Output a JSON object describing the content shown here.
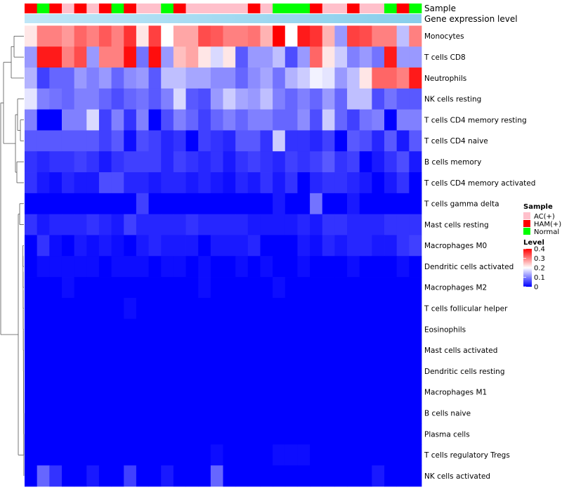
{
  "chart_data": {
    "type": "heatmap",
    "annotations": {
      "sample_label": "Sample",
      "expression_label": "Gene expression level"
    },
    "columns": {
      "count": 32,
      "sample_group": [
        "HAM(+)",
        "Normal",
        "HAM(+)",
        "AC(+)",
        "HAM(+)",
        "AC(+)",
        "HAM(+)",
        "Normal",
        "HAM(+)",
        "AC(+)",
        "AC(+)",
        "Normal",
        "HAM(+)",
        "AC(+)",
        "AC(+)",
        "AC(+)",
        "AC(+)",
        "AC(+)",
        "HAM(+)",
        "AC(+)",
        "Normal",
        "Normal",
        "Normal",
        "HAM(+)",
        "AC(+)",
        "AC(+)",
        "HAM(+)",
        "AC(+)",
        "AC(+)",
        "Normal",
        "HAM(+)",
        "Normal"
      ]
    },
    "rows": [
      "Monocytes",
      "T cells CD8",
      "Neutrophils",
      "NK cells resting",
      "T cells CD4 memory resting",
      "T cells CD4 naive",
      "B cells memory",
      "T cells CD4 memory activated",
      "T cells gamma delta",
      "Mast cells resting",
      "Macrophages M0",
      "Dendritic cells activated",
      "Macrophages M2",
      "T cells follicular helper",
      "Eosinophils",
      "Mast cells activated",
      "Dendritic cells resting",
      "Macrophages M1",
      "B cells naive",
      "Plasma cells",
      "T cells regulatory  Tregs",
      "NK cells activated"
    ],
    "values": [
      [
        0.22,
        0.3,
        0.3,
        0.28,
        0.32,
        0.3,
        0.33,
        0.3,
        0.36,
        0.22,
        0.35,
        0.2,
        0.27,
        0.27,
        0.34,
        0.33,
        0.3,
        0.3,
        0.31,
        0.26,
        0.4,
        0.2,
        0.38,
        0.36,
        0.26,
        0.12,
        0.35,
        0.34,
        0.3,
        0.3,
        0.15,
        0.3
      ],
      [
        0.12,
        0.38,
        0.38,
        0.3,
        0.34,
        0.12,
        0.3,
        0.3,
        0.39,
        0.09,
        0.39,
        0.12,
        0.25,
        0.27,
        0.22,
        0.17,
        0.22,
        0.07,
        0.12,
        0.12,
        0.15,
        0.06,
        0.12,
        0.32,
        0.22,
        0.16,
        0.1,
        0.12,
        0.09,
        0.38,
        0.12,
        0.12
      ],
      [
        0.14,
        0.05,
        0.08,
        0.08,
        0.12,
        0.1,
        0.12,
        0.08,
        0.11,
        0.12,
        0.07,
        0.15,
        0.15,
        0.13,
        0.13,
        0.11,
        0.11,
        0.08,
        0.11,
        0.13,
        0.09,
        0.14,
        0.16,
        0.19,
        0.18,
        0.12,
        0.15,
        0.22,
        0.32,
        0.32,
        0.3,
        0.38
      ],
      [
        0.18,
        0.1,
        0.09,
        0.08,
        0.1,
        0.1,
        0.08,
        0.06,
        0.08,
        0.09,
        0.07,
        0.1,
        0.17,
        0.07,
        0.06,
        0.12,
        0.16,
        0.13,
        0.12,
        0.15,
        0.1,
        0.08,
        0.1,
        0.08,
        0.12,
        0.08,
        0.15,
        0.15,
        0.06,
        0.09,
        0.07,
        0.07
      ],
      [
        0.1,
        0.0,
        0.0,
        0.1,
        0.1,
        0.17,
        0.05,
        0.1,
        0.04,
        0.1,
        0.0,
        0.06,
        0.1,
        0.08,
        0.05,
        0.08,
        0.1,
        0.08,
        0.1,
        0.1,
        0.08,
        0.08,
        0.11,
        0.06,
        0.16,
        0.08,
        0.05,
        0.09,
        0.1,
        0.0,
        0.1,
        0.1
      ],
      [
        0.07,
        0.07,
        0.07,
        0.07,
        0.07,
        0.07,
        0.05,
        0.07,
        0.01,
        0.06,
        0.05,
        0.03,
        0.04,
        0.0,
        0.05,
        0.04,
        0.03,
        0.07,
        0.07,
        0.04,
        0.16,
        0.04,
        0.04,
        0.03,
        0.05,
        0.0,
        0.07,
        0.06,
        0.03,
        0.07,
        0.02,
        0.07
      ],
      [
        0.04,
        0.03,
        0.04,
        0.04,
        0.05,
        0.04,
        0.02,
        0.04,
        0.05,
        0.05,
        0.05,
        0.03,
        0.05,
        0.04,
        0.03,
        0.04,
        0.02,
        0.04,
        0.05,
        0.04,
        0.03,
        0.05,
        0.04,
        0.05,
        0.07,
        0.04,
        0.05,
        0.0,
        0.02,
        0.04,
        0.06,
        0.02
      ],
      [
        0.04,
        0.02,
        0.01,
        0.03,
        0.02,
        0.02,
        0.06,
        0.06,
        0.03,
        0.03,
        0.02,
        0.03,
        0.03,
        0.02,
        0.03,
        0.02,
        0.01,
        0.03,
        0.02,
        0.04,
        0.02,
        0.04,
        0.0,
        0.03,
        0.04,
        0.04,
        0.03,
        0.02,
        0.0,
        0.02,
        0.04,
        0.0
      ],
      [
        0.0,
        0.0,
        0.0,
        0.0,
        0.0,
        0.0,
        0.0,
        0.0,
        0.0,
        0.05,
        0.0,
        0.0,
        0.0,
        0.0,
        0.0,
        0.0,
        0.0,
        0.0,
        0.0,
        0.0,
        0.02,
        0.0,
        0.0,
        0.09,
        0.0,
        0.0,
        0.02,
        0.0,
        0.0,
        0.0,
        0.0,
        0.0
      ],
      [
        0.04,
        0.02,
        0.03,
        0.03,
        0.03,
        0.04,
        0.03,
        0.02,
        0.05,
        0.03,
        0.03,
        0.03,
        0.03,
        0.04,
        0.03,
        0.03,
        0.03,
        0.03,
        0.02,
        0.02,
        0.02,
        0.02,
        0.03,
        0.02,
        0.04,
        0.04,
        0.03,
        0.03,
        0.03,
        0.04,
        0.04,
        0.04
      ],
      [
        0.0,
        0.04,
        0.01,
        0.0,
        0.02,
        0.01,
        0.02,
        0.01,
        0.0,
        0.02,
        0.03,
        0.02,
        0.02,
        0.02,
        0.0,
        0.02,
        0.02,
        0.02,
        0.03,
        0.0,
        0.0,
        0.0,
        0.02,
        0.01,
        0.03,
        0.02,
        0.03,
        0.03,
        0.02,
        0.02,
        0.04,
        0.05
      ],
      [
        0.0,
        0.01,
        0.01,
        0.01,
        0.01,
        0.01,
        0.0,
        0.01,
        0.01,
        0.01,
        0.0,
        0.01,
        0.01,
        0.0,
        0.01,
        0.0,
        0.0,
        0.01,
        0.0,
        0.01,
        0.0,
        0.0,
        0.01,
        0.0,
        0.0,
        0.0,
        0.01,
        0.0,
        0.0,
        0.0,
        0.01,
        0.0
      ],
      [
        0.0,
        0.0,
        0.0,
        0.01,
        0.0,
        0.0,
        0.0,
        0.0,
        0.0,
        0.0,
        0.0,
        0.0,
        0.0,
        0.0,
        0.01,
        0.0,
        0.0,
        0.0,
        0.0,
        0.0,
        0.01,
        0.0,
        0.0,
        0.0,
        0.0,
        0.0,
        0.0,
        0.0,
        0.0,
        0.0,
        0.0,
        0.0
      ],
      [
        0.0,
        0.0,
        0.0,
        0.0,
        0.0,
        0.0,
        0.0,
        0.0,
        0.01,
        0.0,
        0.0,
        0.0,
        0.0,
        0.0,
        0.0,
        0.0,
        0.0,
        0.0,
        0.0,
        0.0,
        0.0,
        0.0,
        0.0,
        0.0,
        0.0,
        0.0,
        0.0,
        0.0,
        0.0,
        0.0,
        0.0,
        0.0
      ],
      [
        0.0,
        0.0,
        0.0,
        0.0,
        0.0,
        0.0,
        0.0,
        0.0,
        0.0,
        0.0,
        0.0,
        0.0,
        0.0,
        0.0,
        0.0,
        0.0,
        0.0,
        0.0,
        0.0,
        0.0,
        0.0,
        0.0,
        0.0,
        0.0,
        0.0,
        0.0,
        0.0,
        0.0,
        0.0,
        0.0,
        0.0,
        0.0
      ],
      [
        0.0,
        0.0,
        0.0,
        0.0,
        0.0,
        0.0,
        0.0,
        0.0,
        0.0,
        0.0,
        0.0,
        0.0,
        0.0,
        0.0,
        0.0,
        0.0,
        0.0,
        0.0,
        0.0,
        0.0,
        0.0,
        0.0,
        0.0,
        0.0,
        0.0,
        0.0,
        0.0,
        0.0,
        0.0,
        0.0,
        0.0,
        0.0
      ],
      [
        0.0,
        0.0,
        0.0,
        0.0,
        0.0,
        0.0,
        0.0,
        0.0,
        0.0,
        0.0,
        0.0,
        0.0,
        0.0,
        0.0,
        0.0,
        0.0,
        0.0,
        0.0,
        0.0,
        0.0,
        0.0,
        0.0,
        0.0,
        0.0,
        0.0,
        0.0,
        0.0,
        0.0,
        0.0,
        0.0,
        0.0,
        0.0
      ],
      [
        0.0,
        0.0,
        0.0,
        0.0,
        0.0,
        0.0,
        0.0,
        0.0,
        0.0,
        0.0,
        0.0,
        0.0,
        0.0,
        0.0,
        0.0,
        0.0,
        0.0,
        0.0,
        0.0,
        0.0,
        0.0,
        0.0,
        0.0,
        0.0,
        0.0,
        0.0,
        0.0,
        0.0,
        0.0,
        0.0,
        0.0,
        0.0
      ],
      [
        0.0,
        0.0,
        0.0,
        0.0,
        0.0,
        0.0,
        0.0,
        0.0,
        0.0,
        0.0,
        0.0,
        0.0,
        0.0,
        0.0,
        0.0,
        0.0,
        0.0,
        0.0,
        0.0,
        0.0,
        0.0,
        0.0,
        0.0,
        0.0,
        0.0,
        0.0,
        0.0,
        0.0,
        0.0,
        0.0,
        0.0,
        0.0
      ],
      [
        0.0,
        0.0,
        0.0,
        0.0,
        0.0,
        0.0,
        0.0,
        0.0,
        0.0,
        0.0,
        0.0,
        0.0,
        0.0,
        0.0,
        0.0,
        0.0,
        0.0,
        0.0,
        0.0,
        0.0,
        0.0,
        0.0,
        0.0,
        0.0,
        0.0,
        0.0,
        0.0,
        0.0,
        0.0,
        0.0,
        0.0,
        0.0
      ],
      [
        0.0,
        0.0,
        0.0,
        0.0,
        0.0,
        0.0,
        0.0,
        0.0,
        0.0,
        0.0,
        0.0,
        0.0,
        0.0,
        0.0,
        0.0,
        0.01,
        0.0,
        0.0,
        0.0,
        0.0,
        0.01,
        0.01,
        0.01,
        0.0,
        0.0,
        0.0,
        0.0,
        0.0,
        0.0,
        0.0,
        0.0,
        0.0
      ],
      [
        0.0,
        0.08,
        0.04,
        0.0,
        0.0,
        0.02,
        0.0,
        0.0,
        0.05,
        0.0,
        0.0,
        0.02,
        0.0,
        0.0,
        0.0,
        0.08,
        0.0,
        0.0,
        0.0,
        0.0,
        0.0,
        0.0,
        0.0,
        0.0,
        0.0,
        0.0,
        0.0,
        0.0,
        0.02,
        0.0,
        0.0,
        0.0
      ]
    ],
    "color_scale": {
      "min": 0,
      "max": 0.4,
      "stops": [
        {
          "value": 0,
          "color": "#0000ff"
        },
        {
          "value": 0.2,
          "color": "#ffffff"
        },
        {
          "value": 0.4,
          "color": "#ff0000"
        }
      ]
    },
    "legend": {
      "sample": {
        "title": "Sample",
        "items": [
          {
            "label": "AC(+)",
            "color": "#ffc0cb"
          },
          {
            "label": "HAM(+)",
            "color": "#ff0000"
          },
          {
            "label": "Normal",
            "color": "#00ff00"
          }
        ]
      },
      "level": {
        "title": "Level",
        "ticks": [
          "0.4",
          "0.3",
          "0.2",
          "0.1",
          "0"
        ]
      }
    },
    "expression_bar_color": "#87ceeb"
  }
}
